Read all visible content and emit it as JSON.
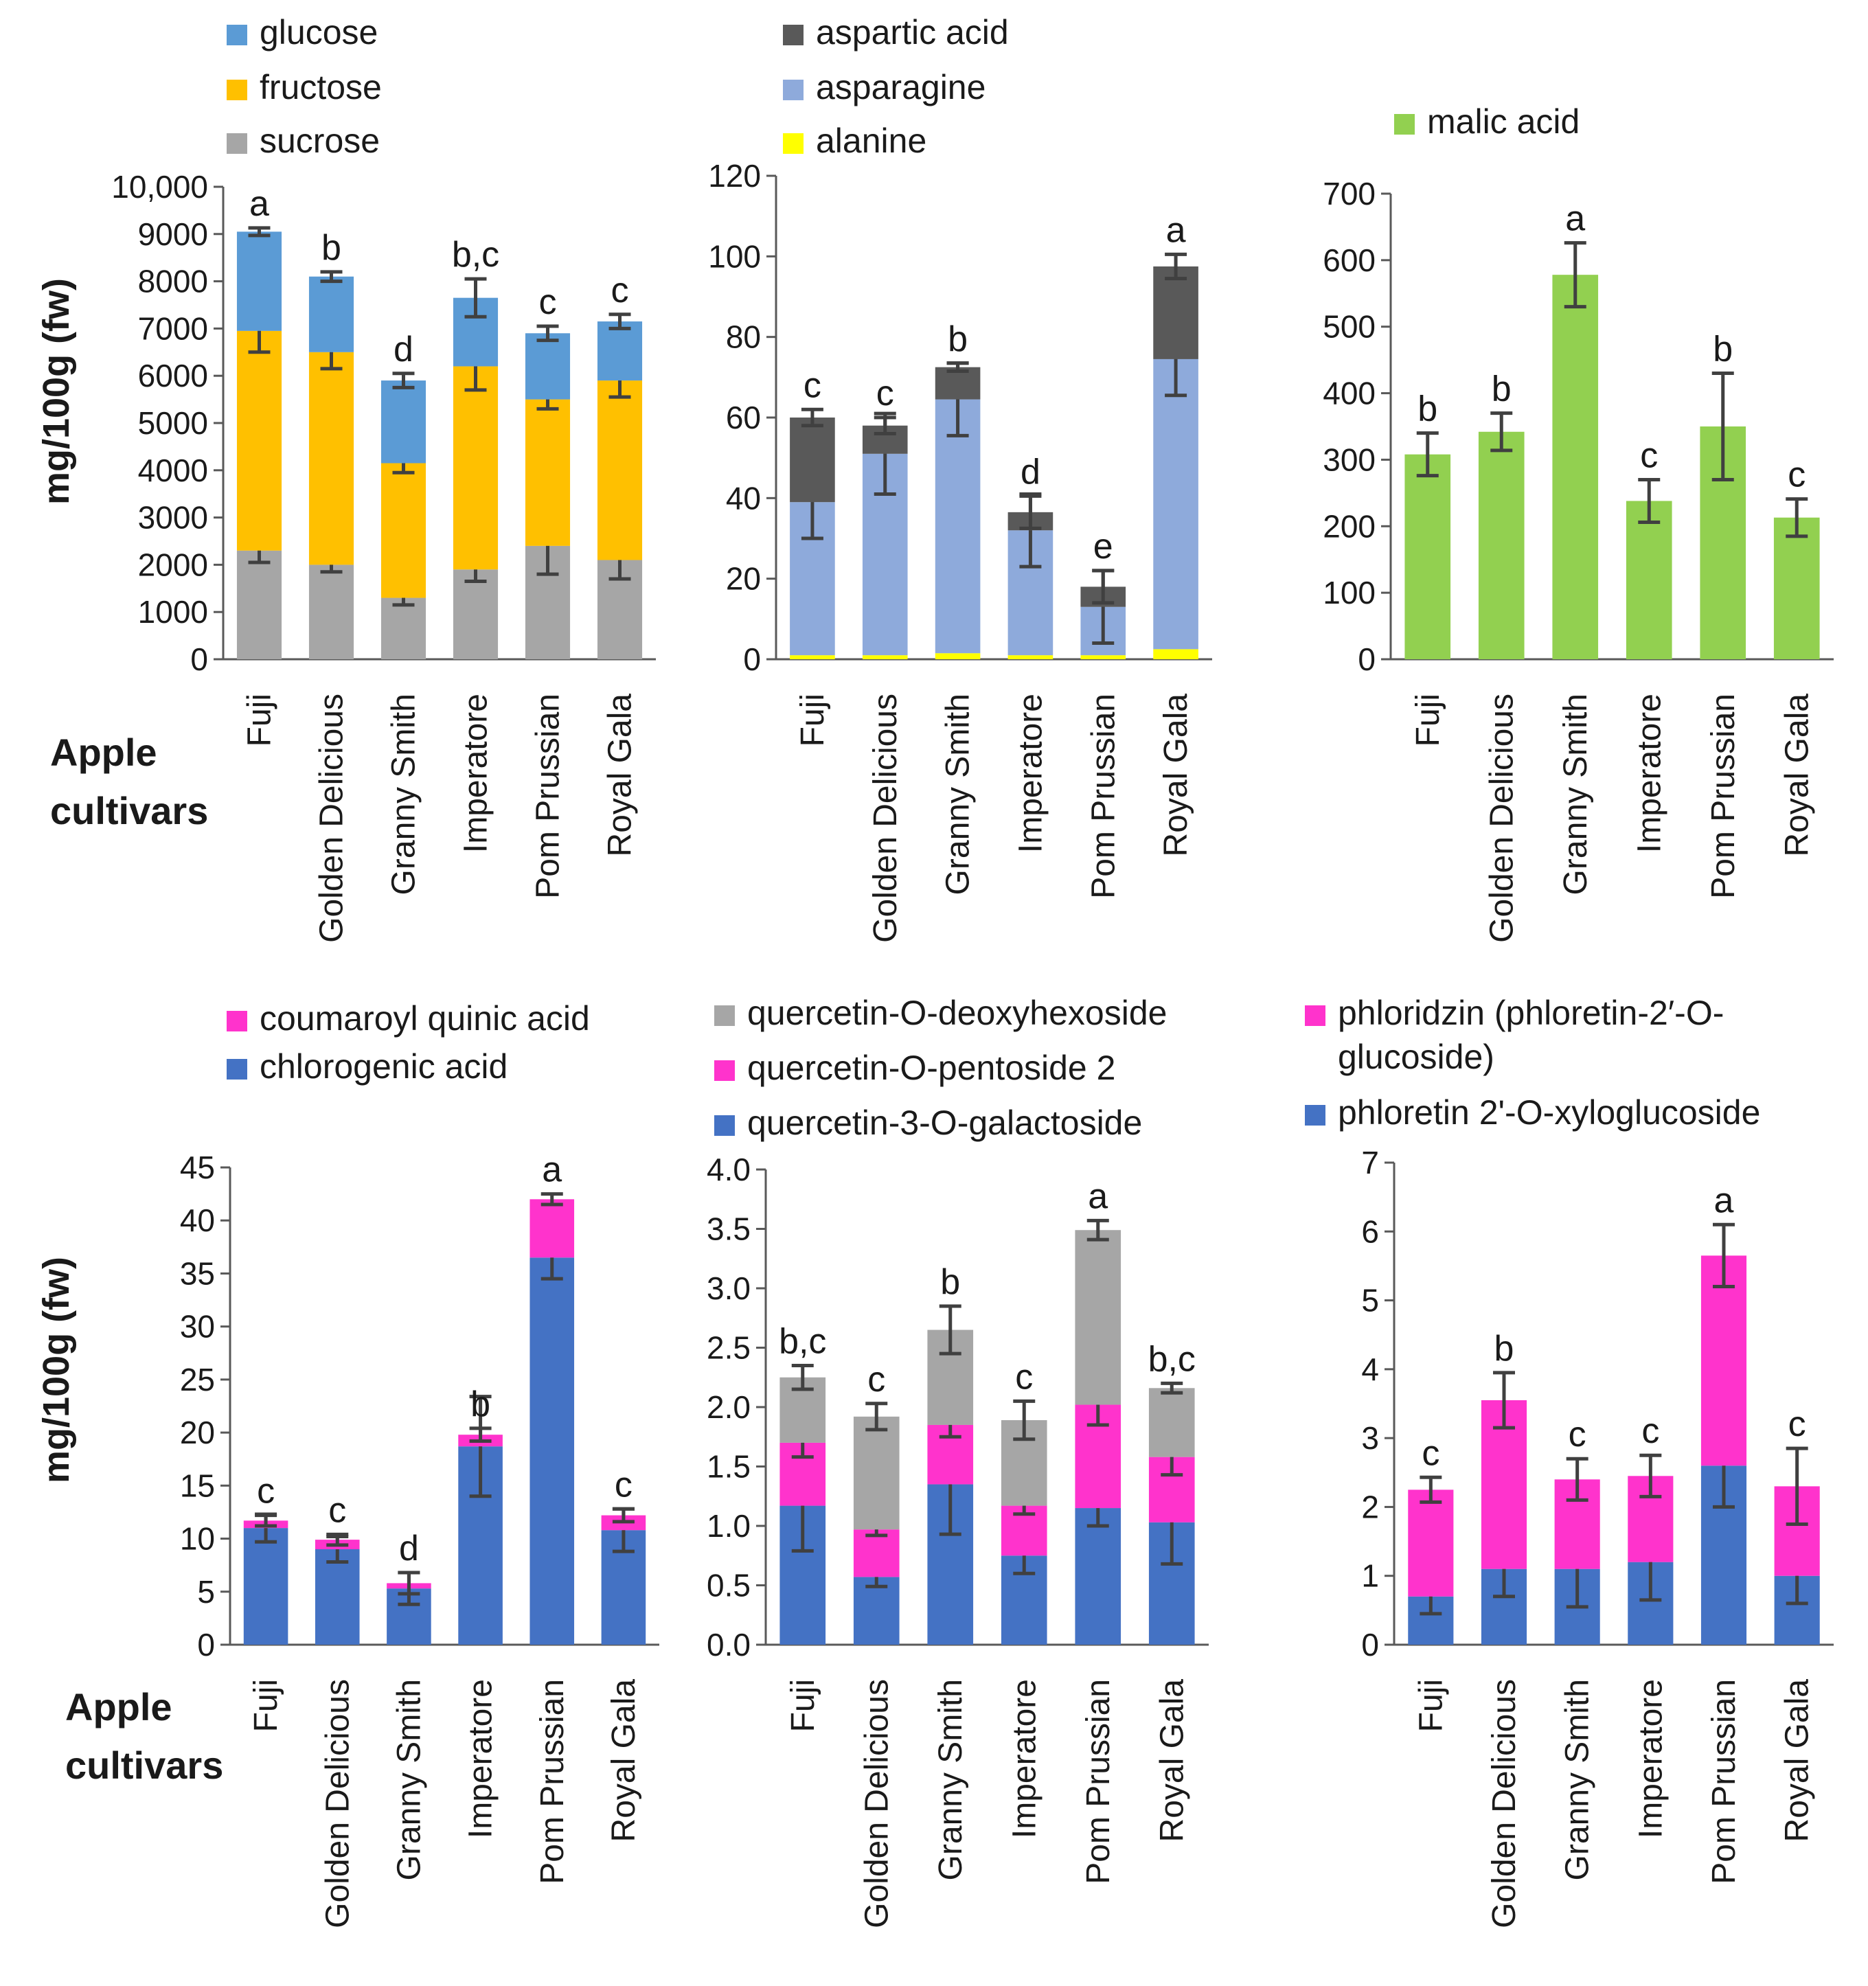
{
  "x_label": "Apple cultivars",
  "y_label": "mg/100g (fw)",
  "chart_data": [
    {
      "type": "bar",
      "stacked": true,
      "id": "sugars",
      "categories": [
        "Fuji",
        "Golden Delicious",
        "Granny Smith",
        "Imperatore",
        "Pom Prussian",
        "Royal Gala"
      ],
      "ylim": [
        0,
        10000
      ],
      "yticks": [
        0,
        1000,
        2000,
        3000,
        4000,
        5000,
        6000,
        7000,
        8000,
        9000,
        10000
      ],
      "ytick_labels": [
        "0",
        "1000",
        "2000",
        "3000",
        "4000",
        "5000",
        "6000",
        "7000",
        "8000",
        "9000",
        "10,000"
      ],
      "ylabel": "mg/100g (fw)",
      "xlabel": "Apple cultivars",
      "legend": [
        "glucose",
        "fructose",
        "sucrose"
      ],
      "series": [
        {
          "name": "sucrose",
          "color": "#a6a6a6",
          "values": [
            2300,
            2000,
            1300,
            1900,
            2400,
            2100
          ],
          "errors": [
            250,
            150,
            150,
            250,
            600,
            400
          ]
        },
        {
          "name": "fructose",
          "color": "#ffc000",
          "values": [
            4650,
            4500,
            2850,
            4300,
            3100,
            3800
          ],
          "errors": [
            450,
            350,
            200,
            500,
            200,
            350
          ]
        },
        {
          "name": "glucose",
          "color": "#5b9bd5",
          "values": [
            2100,
            1600,
            1750,
            1450,
            1400,
            1250
          ],
          "errors": [
            80,
            100,
            150,
            400,
            150,
            150
          ]
        }
      ],
      "letters": [
        "a",
        "b",
        "d",
        "b,c",
        "c",
        "c"
      ]
    },
    {
      "type": "bar",
      "stacked": true,
      "id": "amino_acids",
      "categories": [
        "Fuji",
        "Golden Delicious",
        "Granny Smith",
        "Imperatore",
        "Pom Prussian",
        "Royal Gala"
      ],
      "ylim": [
        0,
        120
      ],
      "yticks": [
        0,
        20,
        40,
        60,
        80,
        100,
        120
      ],
      "ytick_labels": [
        "0",
        "20",
        "40",
        "60",
        "80",
        "100",
        "120"
      ],
      "legend": [
        "aspartic acid",
        "asparagine",
        "alanine"
      ],
      "series": [
        {
          "name": "alanine",
          "color": "#ffff00",
          "values": [
            1,
            1,
            1.5,
            1,
            1,
            2.5
          ],
          "errors": [
            0,
            0,
            0,
            0,
            0,
            0
          ]
        },
        {
          "name": "asparagine",
          "color": "#8eaadb",
          "values": [
            38,
            50,
            63,
            31,
            12,
            72
          ],
          "errors": [
            9,
            10,
            9,
            9,
            9,
            9
          ]
        },
        {
          "name": "aspartic acid",
          "color": "#595959",
          "values": [
            21,
            7,
            8,
            4.5,
            5,
            23
          ],
          "errors": [
            2,
            2,
            1,
            4,
            4,
            3
          ]
        }
      ],
      "letters": [
        "c",
        "c",
        "b",
        "d",
        "e",
        "a"
      ]
    },
    {
      "type": "bar",
      "stacked": false,
      "id": "malic_acid",
      "categories": [
        "Fuji",
        "Golden Delicious",
        "Granny Smith",
        "Imperatore",
        "Pom Prussian",
        "Royal Gala"
      ],
      "ylim": [
        0,
        700
      ],
      "yticks": [
        0,
        100,
        200,
        300,
        400,
        500,
        600,
        700
      ],
      "ytick_labels": [
        "0",
        "100",
        "200",
        "300",
        "400",
        "500",
        "600",
        "700"
      ],
      "legend": [
        "malic acid"
      ],
      "series": [
        {
          "name": "malic acid",
          "color": "#92d050",
          "values": [
            308,
            342,
            578,
            238,
            350,
            213
          ],
          "errors": [
            32,
            28,
            48,
            32,
            80,
            28
          ]
        }
      ],
      "letters": [
        "b",
        "b",
        "a",
        "c",
        "b",
        "c"
      ]
    },
    {
      "type": "bar",
      "stacked": true,
      "id": "hydroxycinnamic",
      "categories": [
        "Fuji",
        "Golden Delicious",
        "Granny Smith",
        "Imperatore",
        "Pom Prussian",
        "Royal Gala"
      ],
      "ylim": [
        0,
        45
      ],
      "yticks": [
        0,
        5,
        10,
        15,
        20,
        25,
        30,
        35,
        40,
        45
      ],
      "ytick_labels": [
        "0",
        "5",
        "10",
        "15",
        "20",
        "25",
        "30",
        "35",
        "40",
        "45"
      ],
      "ylabel": "mg/100g (fw)",
      "xlabel": "Apple cultivars",
      "legend": [
        "coumaroyl quinic acid",
        "chlorogenic acid"
      ],
      "series": [
        {
          "name": "chlorogenic acid",
          "color": "#4472c4",
          "values": [
            11,
            9,
            5.3,
            18.7,
            36.5,
            10.8
          ],
          "errors": [
            1.3,
            1.2,
            1.5,
            4.7,
            2,
            2
          ]
        },
        {
          "name": "coumaroyl quinic acid",
          "color": "#ff33cc",
          "values": [
            0.7,
            0.9,
            0.5,
            1.1,
            5.5,
            1.4
          ],
          "errors": [
            0.5,
            0.5,
            1,
            0.6,
            0.5,
            0.6
          ]
        }
      ],
      "letters": [
        "c",
        "c",
        "d",
        "b",
        "a",
        "c"
      ]
    },
    {
      "type": "bar",
      "stacked": true,
      "id": "quercetins",
      "categories": [
        "Fuji",
        "Golden Delicious",
        "Granny Smith",
        "Imperatore",
        "Pom Prussian",
        "Royal Gala"
      ],
      "ylim": [
        0,
        4
      ],
      "yticks": [
        0,
        0.5,
        1,
        1.5,
        2,
        2.5,
        3,
        3.5,
        4
      ],
      "ytick_labels": [
        "0.0",
        "0.5",
        "1.0",
        "1.5",
        "2.0",
        "2.5",
        "3.0",
        "3.5",
        "4.0"
      ],
      "legend": [
        "quercetin-O-deoxyhexoside",
        "quercetin-O-pentoside 2",
        "quercetin-3-O-galactoside"
      ],
      "series": [
        {
          "name": "quercetin-3-O-galactoside",
          "color": "#4472c4",
          "values": [
            1.17,
            0.57,
            1.35,
            0.75,
            1.15,
            1.03
          ],
          "errors": [
            0.38,
            0.08,
            0.42,
            0.15,
            0.15,
            0.35
          ]
        },
        {
          "name": "quercetin-O-pentoside 2",
          "color": "#ff33cc",
          "values": [
            0.53,
            0.4,
            0.5,
            0.42,
            0.87,
            0.55
          ],
          "errors": [
            0.12,
            0.05,
            0.1,
            0.07,
            0.17,
            0.15
          ]
        },
        {
          "name": "quercetin-O-deoxyhexoside",
          "color": "#a6a6a6",
          "values": [
            0.55,
            0.95,
            0.8,
            0.72,
            1.47,
            0.58
          ],
          "errors": [
            0.1,
            0.11,
            0.2,
            0.16,
            0.08,
            0.04
          ]
        }
      ],
      "letters": [
        "b,c",
        "c",
        "b",
        "c",
        "a",
        "b,c"
      ]
    },
    {
      "type": "bar",
      "stacked": true,
      "id": "dihydrochalcones",
      "categories": [
        "Fuji",
        "Golden Delicious",
        "Granny Smith",
        "Imperatore",
        "Pom Prussian",
        "Royal Gala"
      ],
      "ylim": [
        0,
        7
      ],
      "yticks": [
        0,
        1,
        2,
        3,
        4,
        5,
        6,
        7
      ],
      "ytick_labels": [
        "0",
        "1",
        "2",
        "3",
        "4",
        "5",
        "6",
        "7"
      ],
      "legend": [
        "phloridzin (phloretin-2′-O-glucoside)",
        "phloretin 2'-O-xyloglucoside"
      ],
      "legend_lines": [
        "phloridzin (phloretin-2′-O-",
        "glucoside)"
      ],
      "series": [
        {
          "name": "phloretin 2'-O-xyloglucoside",
          "color": "#4472c4",
          "values": [
            0.7,
            1.1,
            1.1,
            1.2,
            2.6,
            1.0
          ],
          "errors": [
            0.25,
            0.4,
            0.55,
            0.55,
            0.6,
            0.4
          ]
        },
        {
          "name": "phloridzin (phloretin-2′-O-glucoside)",
          "color": "#ff33cc",
          "values": [
            1.55,
            2.45,
            1.3,
            1.25,
            3.05,
            1.3
          ],
          "errors": [
            0.18,
            0.4,
            0.3,
            0.3,
            0.45,
            0.55
          ]
        }
      ],
      "letters": [
        "c",
        "b",
        "c",
        "c",
        "a",
        "c"
      ]
    }
  ]
}
